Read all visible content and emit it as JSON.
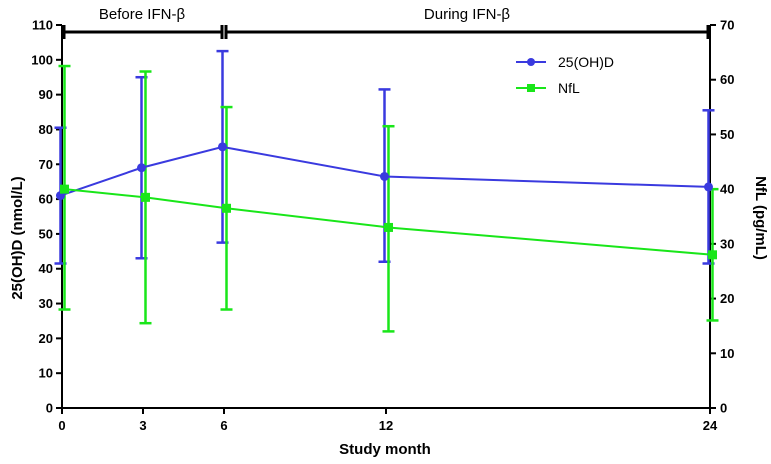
{
  "chart_data": {
    "type": "line",
    "xlabel": "Study month",
    "ylabel_left": "25(OH)D (nmol/L)",
    "ylabel_right": "NfL (pg/mL)",
    "x_ticks": [
      0,
      3,
      6,
      12,
      24
    ],
    "x_range": [
      0,
      24
    ],
    "ylim_left": [
      0,
      110
    ],
    "yticks_left": [
      0,
      10,
      20,
      30,
      40,
      50,
      60,
      70,
      80,
      90,
      100,
      110
    ],
    "ylim_right": [
      0,
      70
    ],
    "yticks_right": [
      0,
      10,
      20,
      30,
      40,
      50,
      60,
      70
    ],
    "periods": [
      {
        "label": "Before IFN-β",
        "start": 0,
        "end": 6
      },
      {
        "label": "During IFN-β",
        "start": 6,
        "end": 24
      }
    ],
    "series": [
      {
        "name": "25(OH)D",
        "axis": "left",
        "color": "#3a3adf",
        "marker": "circle",
        "x": [
          0,
          3,
          6,
          12,
          24
        ],
        "values": [
          61,
          69,
          75,
          66.5,
          63.5
        ],
        "error_low": [
          41.5,
          43,
          47.5,
          42,
          41.5
        ],
        "error_high": [
          80.5,
          95,
          102.5,
          91.5,
          85.5
        ]
      },
      {
        "name": "NfL",
        "axis": "right",
        "color": "#19e619",
        "marker": "square",
        "x": [
          0,
          3,
          6,
          12,
          24
        ],
        "values": [
          40,
          38.5,
          36.5,
          33,
          28
        ],
        "error_low": [
          18,
          15.5,
          18,
          14,
          16
        ],
        "error_high": [
          62.5,
          61.5,
          55,
          51.5,
          40
        ]
      }
    ]
  }
}
